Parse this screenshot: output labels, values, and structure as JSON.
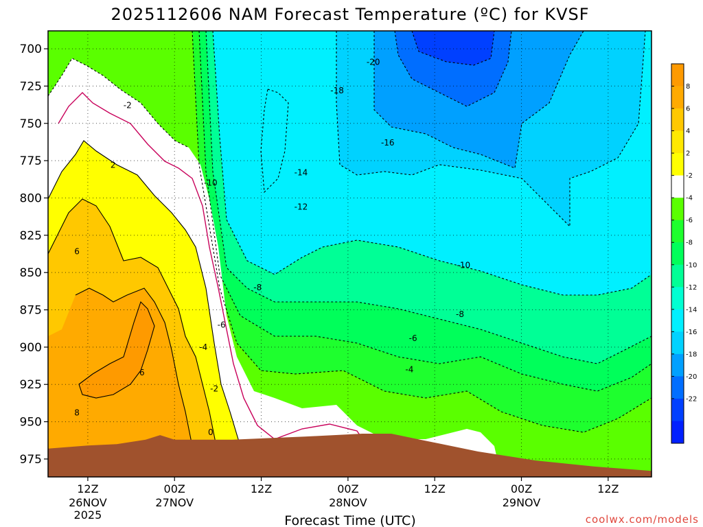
{
  "chart_data": {
    "type": "heatmap",
    "subtype": "time-height filled contour",
    "title": "2025112606 NAM Forecast Temperature (ºC) for KVSF",
    "xlabel": "Forecast Time (UTC)",
    "ylabel": "",
    "x_ticks": [
      {
        "label": "12Z",
        "sub": [
          "26NOV",
          "2025"
        ]
      },
      {
        "label": "00Z",
        "sub": [
          "27NOV"
        ]
      },
      {
        "label": "12Z",
        "sub": []
      },
      {
        "label": "00Z",
        "sub": [
          "28NOV"
        ]
      },
      {
        "label": "12Z",
        "sub": []
      },
      {
        "label": "00Z",
        "sub": [
          "29NOV"
        ]
      },
      {
        "label": "12Z",
        "sub": []
      }
    ],
    "x_range_hours": [
      -5.5,
      78
    ],
    "y_ticks": [
      "700",
      "725",
      "750",
      "775",
      "800",
      "825",
      "850",
      "875",
      "900",
      "925",
      "950",
      "975"
    ],
    "y_range_hPa": [
      688,
      987
    ],
    "grid": true,
    "colorbar": {
      "position": "right",
      "levels": [
        "8",
        "6",
        "4",
        "2",
        "-2",
        "-4",
        "-6",
        "-8",
        "-10",
        "-12",
        "-14",
        "-16",
        "-18",
        "-20",
        "-22"
      ],
      "colors": [
        "#fe9a00",
        "#ffaa00",
        "#ffc800",
        "#ffe800",
        "#ffff00",
        "#ffffff",
        "#5aff00",
        "#1eff2e",
        "#00ff5a",
        "#00ff96",
        "#00ffd2",
        "#00f0ff",
        "#00d2ff",
        "#00a0ff",
        "#006eff",
        "#0040ff",
        "#0020ff"
      ]
    },
    "contour_labels": [
      {
        "text": "-20",
        "hour": 39.5,
        "hPa": 709
      },
      {
        "text": "-18",
        "hour": 34.5,
        "hPa": 728
      },
      {
        "text": "-16",
        "hour": 41.5,
        "hPa": 763
      },
      {
        "text": "-14",
        "hour": 29.5,
        "hPa": 783
      },
      {
        "text": "-12",
        "hour": 29.5,
        "hPa": 806
      },
      {
        "text": "-10",
        "hour": 17.0,
        "hPa": 790
      },
      {
        "text": "-10",
        "hour": 52.0,
        "hPa": 845
      },
      {
        "text": "-8",
        "hour": 23.5,
        "hPa": 860
      },
      {
        "text": "-8",
        "hour": 51.5,
        "hPa": 878
      },
      {
        "text": "-6",
        "hour": 18.5,
        "hPa": 885
      },
      {
        "text": "-6",
        "hour": 45.0,
        "hPa": 894
      },
      {
        "text": "-4",
        "hour": 16.0,
        "hPa": 900
      },
      {
        "text": "-4",
        "hour": 44.5,
        "hPa": 915
      },
      {
        "text": "-2",
        "hour": 5.5,
        "hPa": 738
      },
      {
        "text": "-2",
        "hour": 17.5,
        "hPa": 928
      },
      {
        "text": "0",
        "hour": 17.0,
        "hPa": 957
      },
      {
        "text": "2",
        "hour": 3.5,
        "hPa": 778
      },
      {
        "text": "6",
        "hour": -1.5,
        "hPa": 836
      },
      {
        "text": "6",
        "hour": 7.5,
        "hPa": 917
      },
      {
        "text": "8",
        "hour": -1.5,
        "hPa": 944
      }
    ],
    "surface_pressure_hPa": [
      [
        -5.5,
        968
      ],
      [
        0,
        966
      ],
      [
        4,
        965
      ],
      [
        8,
        962
      ],
      [
        10,
        959
      ],
      [
        12,
        962
      ],
      [
        20,
        962
      ],
      [
        30,
        960
      ],
      [
        38,
        958
      ],
      [
        42,
        958
      ],
      [
        46,
        962
      ],
      [
        54,
        970
      ],
      [
        62,
        976
      ],
      [
        70,
        980
      ],
      [
        78,
        983
      ]
    ]
  },
  "credit": "coolwx.com/models"
}
